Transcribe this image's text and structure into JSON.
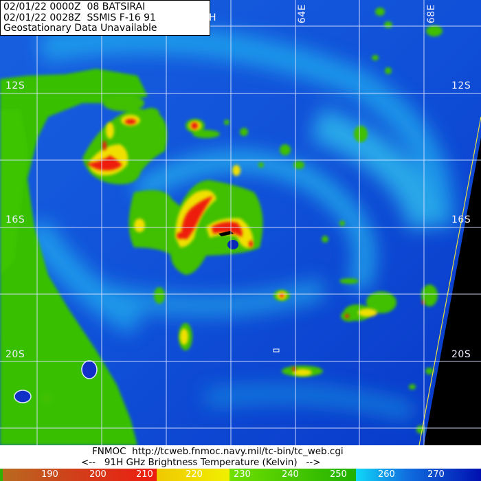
{
  "header": {
    "line1": "02/01/22 0000Z  08 BATSIRAI",
    "line2": "02/01/22 0028Z  SSMIS F-16 91",
    "line2_tail": "H",
    "line3": "Geostationary Data Unavailable"
  },
  "grid": {
    "longitude_labels": [
      "64E",
      "68E"
    ],
    "latitude_labels_left": [
      "12S",
      "16S",
      "20S"
    ],
    "latitude_labels_right": [
      "12S",
      "16S",
      "20S"
    ]
  },
  "footer": {
    "credit": "FNMOC  http://tcweb.fnmoc.navy.mil/tc-bin/tc_web.cgi",
    "scale_title": "<--   91H GHz Brightness Temperature (Kelvin)   -->"
  },
  "colorbar": {
    "unit": "Kelvin",
    "ticks": [
      "190",
      "200",
      "210",
      "220",
      "230",
      "240",
      "250",
      "260",
      "270"
    ],
    "colors": {
      "brown": "#b8601e",
      "red": "#ee1c10",
      "yellow": "#f0e000",
      "green": "#3cc800",
      "cyan": "#10c8f0",
      "blue": "#0020c0",
      "no_data": "#000000",
      "swath_edge": "#e8e040"
    }
  }
}
